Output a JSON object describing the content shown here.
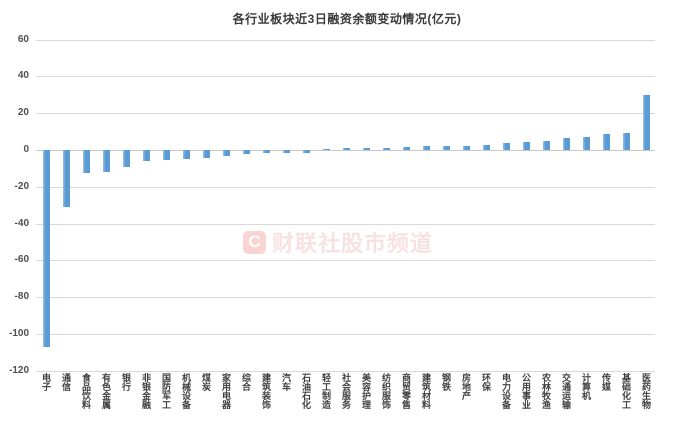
{
  "chart_data": {
    "type": "bar",
    "title": "各行业板块近3日融资余额变动情况(亿元)",
    "xlabel": "",
    "ylabel": "",
    "categories": [
      "电子",
      "通信",
      "食品饮料",
      "有色金属",
      "银行",
      "非银金融",
      "国防军工",
      "机械设备",
      "煤炭",
      "家用电器",
      "综合",
      "建筑装饰",
      "汽车",
      "石油石化",
      "轻工制造",
      "社会服务",
      "美容护理",
      "纺织服饰",
      "商贸零售",
      "建筑材料",
      "钢铁",
      "房地产",
      "环保",
      "电力设备",
      "公用事业",
      "农林牧渔",
      "交通运输",
      "计算机",
      "传媒",
      "基础化工",
      "医药生物"
    ],
    "values": [
      -107,
      -31,
      -12.6,
      -12.2,
      -9.2,
      -6.2,
      -5.6,
      -5.1,
      -4.4,
      -3.0,
      -2.3,
      -1.8,
      -1.6,
      -1.4,
      0.8,
      1.0,
      1.1,
      1.3,
      1.5,
      2.1,
      2.2,
      2.3,
      3.0,
      3.6,
      4.5,
      4.7,
      6.4,
      7.2,
      8.5,
      9.4,
      30
    ],
    "ylim": [
      -120,
      60
    ],
    "yticks": [
      60,
      40,
      20,
      0,
      -20,
      -40,
      -60,
      -80,
      -100,
      -120
    ],
    "grid": true,
    "legend_position": "none",
    "bar_color": "#5B9BD5",
    "bar_edge_color": "#8FBADF",
    "grid_color": "#D9D9D9",
    "zero_line_color": "#C9C9C9",
    "axis_tick_color": "#4f4f4f",
    "category_label_color": "#3f3f3f",
    "title_color": "#3a3a3a"
  },
  "watermark": {
    "badge_letter": "C",
    "text": "财联社股市频道",
    "color": "#DE544D"
  }
}
